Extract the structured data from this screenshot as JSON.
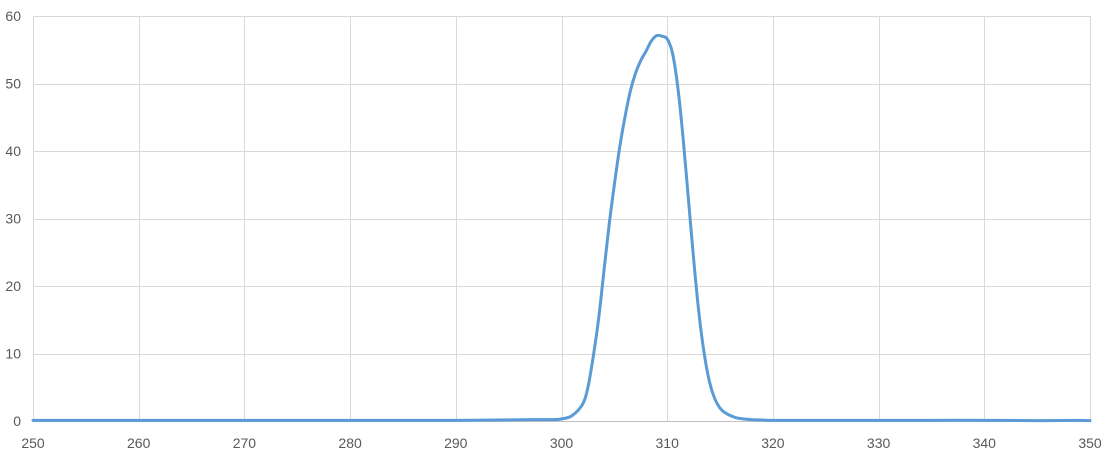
{
  "chart_data": {
    "type": "line",
    "title": "",
    "xlabel": "",
    "ylabel": "",
    "xlim": [
      250,
      350
    ],
    "ylim": [
      0,
      60
    ],
    "x_ticks": [
      "250",
      "260",
      "270",
      "280",
      "290",
      "300",
      "310",
      "320",
      "330",
      "340",
      "350"
    ],
    "y_ticks": [
      "0",
      "10",
      "20",
      "30",
      "40",
      "50",
      "60"
    ],
    "grid": true,
    "legend": "none",
    "series": [
      {
        "color": "#5b9bd5",
        "x": [
          250,
          260,
          270,
          280,
          290,
          297,
          299,
          300,
          301,
          302,
          302.5,
          303,
          303.5,
          304,
          304.5,
          305,
          305.5,
          306,
          306.5,
          307,
          307.5,
          308,
          308.5,
          309,
          309.5,
          310,
          310.5,
          311,
          311.5,
          312,
          312.5,
          313,
          313.5,
          314,
          314.5,
          315,
          315.5,
          316,
          316.5,
          317,
          318,
          319,
          320,
          325,
          330,
          335,
          340,
          345,
          349,
          350
        ],
        "y": [
          0.1,
          0.1,
          0.1,
          0.1,
          0.1,
          0.2,
          0.2,
          0.3,
          0.8,
          2.5,
          5.0,
          9.5,
          15.0,
          22.0,
          29.0,
          35.0,
          40.5,
          45.0,
          48.8,
          51.5,
          53.4,
          54.8,
          56.3,
          57.1,
          57.0,
          56.6,
          54.5,
          49.5,
          42.0,
          33.0,
          24.0,
          16.0,
          10.0,
          5.8,
          3.3,
          1.9,
          1.2,
          0.8,
          0.5,
          0.35,
          0.2,
          0.15,
          0.1,
          0.1,
          0.1,
          0.1,
          0.1,
          0.05,
          0.1,
          0.05
        ]
      }
    ]
  }
}
